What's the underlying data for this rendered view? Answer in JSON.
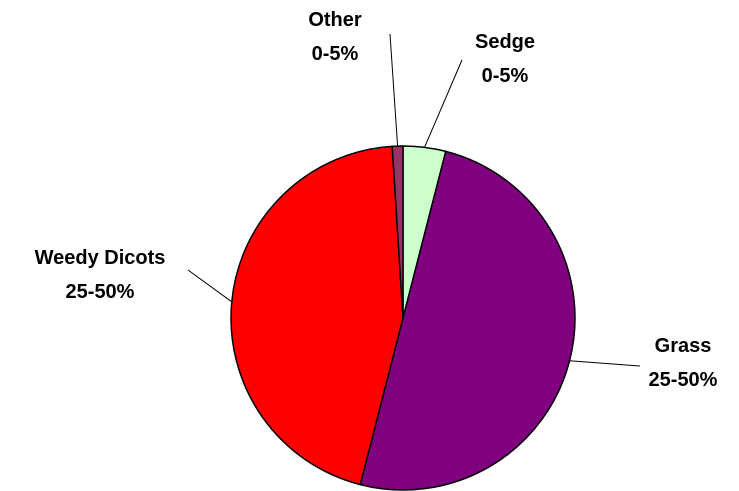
{
  "chart_data": {
    "type": "pie",
    "title": "",
    "legend": "none",
    "slices": [
      {
        "name": "Sedge",
        "value": 4,
        "label_range": "0-5%",
        "color": "#ccffcc"
      },
      {
        "name": "Grass",
        "value": 50,
        "label_range": "25-50%",
        "color": "#800080"
      },
      {
        "name": "Weedy Dicots",
        "value": 45,
        "label_range": "25-50%",
        "color": "#ff0000"
      },
      {
        "name": "Other",
        "value": 1,
        "label_range": "0-5%",
        "color": "#993366"
      }
    ]
  }
}
